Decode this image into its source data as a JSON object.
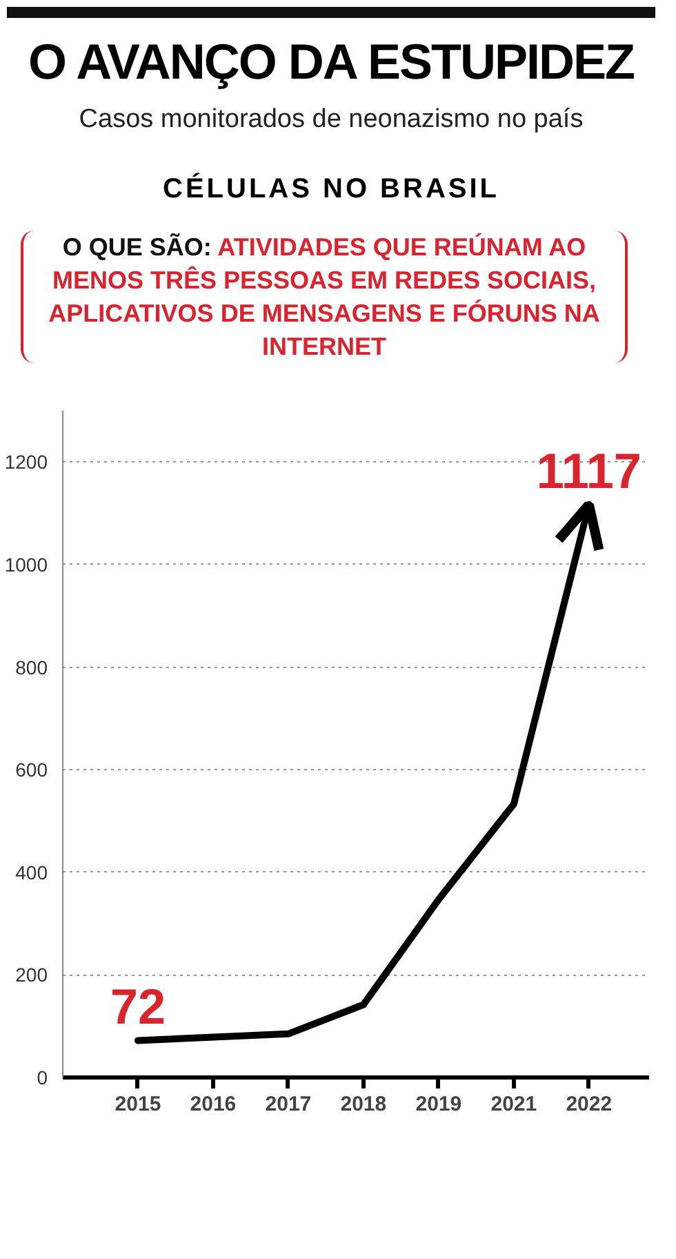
{
  "chart_data": {
    "type": "line",
    "title": "O AVANÇO DA ESTUPIDEZ",
    "subtitle": "Casos monitorados de neonazismo no país",
    "annotations": [
      "CÉLULAS NO BRASIL",
      "O QUE SÃO:",
      "ATIVIDADES QUE REÚNAM AO MENOS TRÊS PESSOAS EM REDES SOCIAIS, APLICATIVOS DE MENSAGENS E FÓRUNS NA INTERNET"
    ],
    "categories": [
      "2015",
      "2016",
      "2017",
      "2018",
      "2019",
      "2021",
      "2022"
    ],
    "series": [
      {
        "color": "#000000",
        "values": [
          72,
          null,
          85,
          142,
          347,
          533,
          1117
        ],
        "value_labels": [
          "72",
          null,
          null,
          null,
          null,
          null,
          "1117"
        ]
      }
    ],
    "ylim": [
      0,
      1300
    ],
    "yticks": [
      0,
      200,
      400,
      600,
      800,
      1000,
      1200
    ],
    "grid": "y"
  }
}
